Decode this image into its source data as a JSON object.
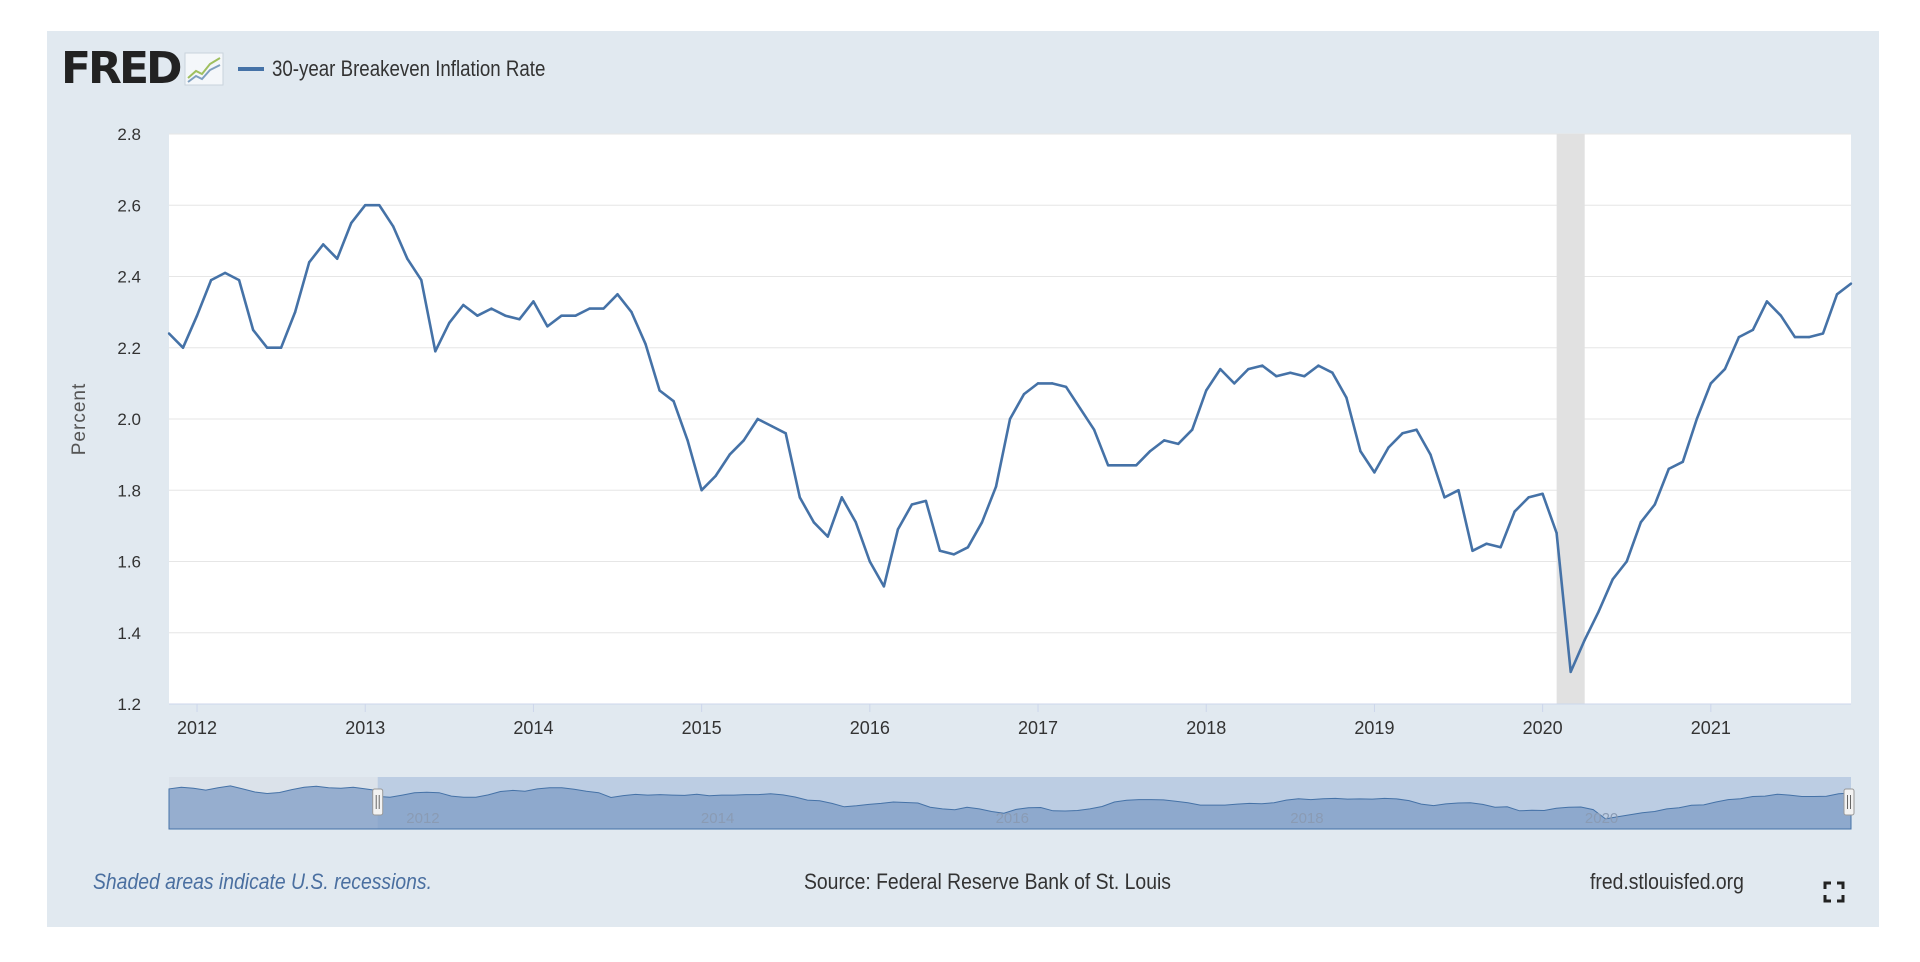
{
  "header": {
    "logo_text": "FRED",
    "legend_label": "30-year Breakeven Inflation Rate",
    "series_color": "#4572a7"
  },
  "footer": {
    "recession_note": "Shaded areas indicate U.S. recessions.",
    "source": "Source: Federal Reserve Bank of St. Louis",
    "site": "fred.stlouisfed.org"
  },
  "icons": {
    "logo_graph": "fred-graph-icon",
    "fullscreen": "fullscreen-icon"
  },
  "chart_data": {
    "type": "line",
    "title": "",
    "xlabel": "",
    "ylabel": "Percent",
    "ylim": [
      1.2,
      2.8
    ],
    "yticks": [
      "1.2",
      "1.4",
      "1.6",
      "1.8",
      "2.0",
      "2.2",
      "2.4",
      "2.6",
      "2.8"
    ],
    "xlim": [
      "2011-11",
      "2021-11"
    ],
    "xticks": [
      "2012",
      "2013",
      "2014",
      "2015",
      "2016",
      "2017",
      "2018",
      "2019",
      "2020",
      "2021"
    ],
    "grid": true,
    "recession": {
      "start": "2020-02",
      "end": "2020-04"
    },
    "navigator_labels": [
      "2012",
      "2014",
      "2016",
      "2018",
      "2020"
    ],
    "series": [
      {
        "name": "30-year Breakeven Inflation Rate",
        "color": "#4572a7",
        "x": [
          "2011-11",
          "2011-12",
          "2012-01",
          "2012-02",
          "2012-03",
          "2012-04",
          "2012-05",
          "2012-06",
          "2012-07",
          "2012-08",
          "2012-09",
          "2012-10",
          "2012-11",
          "2012-12",
          "2013-01",
          "2013-02",
          "2013-03",
          "2013-04",
          "2013-05",
          "2013-06",
          "2013-07",
          "2013-08",
          "2013-09",
          "2013-10",
          "2013-11",
          "2013-12",
          "2014-01",
          "2014-02",
          "2014-03",
          "2014-04",
          "2014-05",
          "2014-06",
          "2014-07",
          "2014-08",
          "2014-09",
          "2014-10",
          "2014-11",
          "2014-12",
          "2015-01",
          "2015-02",
          "2015-03",
          "2015-04",
          "2015-05",
          "2015-06",
          "2015-07",
          "2015-08",
          "2015-09",
          "2015-10",
          "2015-11",
          "2015-12",
          "2016-01",
          "2016-02",
          "2016-03",
          "2016-04",
          "2016-05",
          "2016-06",
          "2016-07",
          "2016-08",
          "2016-09",
          "2016-10",
          "2016-11",
          "2016-12",
          "2017-01",
          "2017-02",
          "2017-03",
          "2017-04",
          "2017-05",
          "2017-06",
          "2017-07",
          "2017-08",
          "2017-09",
          "2017-10",
          "2017-11",
          "2017-12",
          "2018-01",
          "2018-02",
          "2018-03",
          "2018-04",
          "2018-05",
          "2018-06",
          "2018-07",
          "2018-08",
          "2018-09",
          "2018-10",
          "2018-11",
          "2018-12",
          "2019-01",
          "2019-02",
          "2019-03",
          "2019-04",
          "2019-05",
          "2019-06",
          "2019-07",
          "2019-08",
          "2019-09",
          "2019-10",
          "2019-11",
          "2019-12",
          "2020-01",
          "2020-02",
          "2020-03",
          "2020-04",
          "2020-05",
          "2020-06",
          "2020-07",
          "2020-08",
          "2020-09",
          "2020-10",
          "2020-11",
          "2020-12",
          "2021-01",
          "2021-02",
          "2021-03",
          "2021-04",
          "2021-05",
          "2021-06",
          "2021-07",
          "2021-08",
          "2021-09",
          "2021-10",
          "2021-11"
        ],
        "values": [
          2.24,
          2.2,
          2.29,
          2.39,
          2.41,
          2.39,
          2.25,
          2.2,
          2.2,
          2.3,
          2.44,
          2.49,
          2.45,
          2.55,
          2.6,
          2.6,
          2.54,
          2.45,
          2.39,
          2.19,
          2.27,
          2.32,
          2.29,
          2.31,
          2.29,
          2.28,
          2.33,
          2.26,
          2.29,
          2.29,
          2.31,
          2.31,
          2.35,
          2.3,
          2.21,
          2.08,
          2.05,
          1.94,
          1.8,
          1.84,
          1.9,
          1.94,
          2.0,
          1.98,
          1.96,
          1.78,
          1.71,
          1.67,
          1.78,
          1.71,
          1.6,
          1.53,
          1.69,
          1.76,
          1.77,
          1.63,
          1.62,
          1.64,
          1.71,
          1.81,
          2.0,
          2.07,
          2.1,
          2.1,
          2.09,
          2.03,
          1.97,
          1.87,
          1.87,
          1.87,
          1.91,
          1.94,
          1.93,
          1.97,
          2.08,
          2.14,
          2.1,
          2.14,
          2.15,
          2.12,
          2.13,
          2.12,
          2.15,
          2.13,
          2.06,
          1.91,
          1.85,
          1.92,
          1.96,
          1.97,
          1.9,
          1.78,
          1.8,
          1.63,
          1.65,
          1.64,
          1.74,
          1.78,
          1.79,
          1.68,
          1.29,
          1.38,
          1.46,
          1.55,
          1.6,
          1.71,
          1.76,
          1.86,
          1.88,
          2.0,
          2.1,
          2.14,
          2.23,
          2.25,
          2.33,
          2.29,
          2.23,
          2.23,
          2.24,
          2.35,
          2.38
        ]
      }
    ]
  }
}
